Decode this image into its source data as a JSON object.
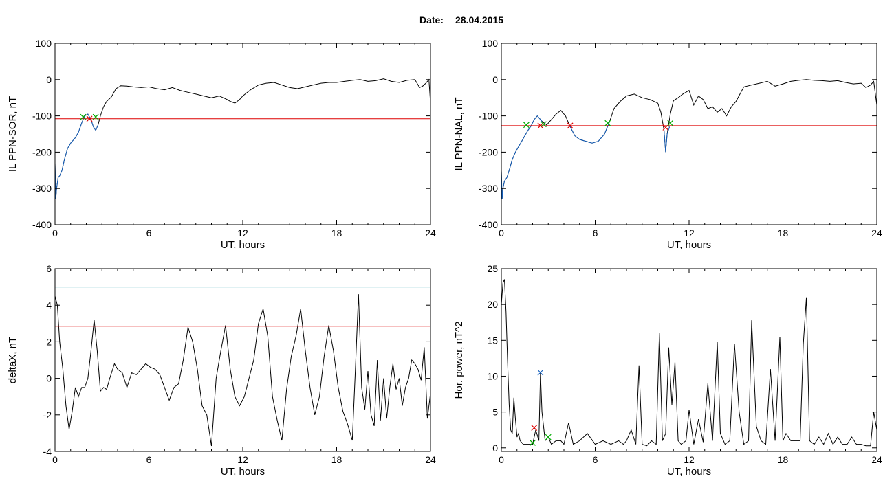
{
  "header": {
    "date_label": "Date:",
    "date_value": "28.04.2015"
  },
  "chart_data": [
    {
      "type": "line",
      "ylabel": "IL PPN-SOR, nT",
      "xlabel": "UT, hours",
      "xlim": [
        0,
        24
      ],
      "ylim": [
        -400,
        100
      ],
      "xticks": [
        0,
        6,
        12,
        18,
        24
      ],
      "yticks": [
        -400,
        -300,
        -200,
        -100,
        0,
        100
      ],
      "grid": false,
      "series": [
        {
          "color": "#000000",
          "x": [
            0,
            0.05,
            0.1,
            0.2,
            0.3,
            0.45,
            0.6,
            0.8,
            1.0,
            1.3,
            1.5,
            1.7,
            1.9,
            2.1,
            2.3,
            2.45,
            2.6,
            2.75,
            2.9,
            3.1,
            3.3,
            3.6,
            3.9,
            4.2,
            4.6,
            5,
            5.5,
            6,
            6.5,
            7,
            7.5,
            8,
            8.5,
            9,
            9.5,
            10,
            10.5,
            11,
            11.2,
            11.5,
            11.8,
            12,
            12.5,
            13,
            13.5,
            14,
            14.5,
            15,
            15.5,
            16,
            16.5,
            17,
            17.5,
            18,
            18.5,
            19,
            19.5,
            20,
            20.5,
            21,
            21.5,
            22,
            22.5,
            23,
            23.3,
            23.5,
            23.7,
            23.9,
            24
          ],
          "y": [
            -230,
            -330,
            -300,
            -270,
            -265,
            -250,
            -220,
            -190,
            -175,
            -160,
            -145,
            -120,
            -100,
            -95,
            -110,
            -130,
            -140,
            -125,
            -100,
            -75,
            -60,
            -48,
            -25,
            -17,
            -18,
            -20,
            -22,
            -20,
            -25,
            -28,
            -22,
            -30,
            -35,
            -40,
            -45,
            -50,
            -45,
            -55,
            -60,
            -65,
            -55,
            -45,
            -28,
            -15,
            -10,
            -8,
            -15,
            -22,
            -25,
            -20,
            -15,
            -10,
            -8,
            -8,
            -5,
            -2,
            0,
            -5,
            -3,
            2,
            -5,
            -8,
            -2,
            0,
            -22,
            -18,
            -10,
            0,
            -65
          ]
        },
        {
          "color": "#1560bd",
          "x": [
            0,
            0.05,
            0.1,
            0.2,
            0.3,
            0.45,
            0.6,
            0.8,
            1.0,
            1.3,
            1.5,
            1.7,
            1.9,
            2.1,
            2.3,
            2.45,
            2.6,
            2.75
          ],
          "y": [
            -230,
            -330,
            -300,
            -270,
            -265,
            -250,
            -220,
            -190,
            -175,
            -160,
            -145,
            -120,
            -100,
            -95,
            -110,
            -130,
            -140,
            -125
          ]
        },
        {
          "color": "#dd0000",
          "x": [
            0,
            24
          ],
          "y": [
            -108,
            -108
          ]
        }
      ],
      "markers": [
        {
          "color": "#dd0000",
          "x": [
            2.2
          ],
          "y": [
            -108
          ]
        },
        {
          "color": "#00aa00",
          "x": [
            1.8,
            2.6
          ],
          "y": [
            -103,
            -103
          ]
        }
      ]
    },
    {
      "type": "line",
      "ylabel": "IL PPN-NAL, nT",
      "xlabel": "UT, hours",
      "xlim": [
        0,
        24
      ],
      "ylim": [
        -400,
        100
      ],
      "xticks": [
        0,
        6,
        12,
        18,
        24
      ],
      "yticks": [
        -400,
        -300,
        -200,
        -100,
        0,
        100
      ],
      "grid": false,
      "series": [
        {
          "color": "#000000",
          "x": [
            0,
            0.05,
            0.1,
            0.2,
            0.35,
            0.5,
            0.7,
            0.9,
            1.1,
            1.3,
            1.5,
            1.7,
            1.9,
            2.1,
            2.3,
            2.6,
            2.9,
            3.2,
            3.5,
            3.8,
            4.1,
            4.4,
            4.7,
            5,
            5.4,
            5.8,
            6.2,
            6.6,
            6.9,
            7.2,
            7.6,
            8,
            8.5,
            9,
            9.5,
            10,
            10.2,
            10.4,
            10.5,
            10.6,
            10.8,
            11,
            11.3,
            11.6,
            12,
            12.3,
            12.6,
            12.9,
            13.2,
            13.5,
            13.8,
            14.1,
            14.4,
            14.7,
            15,
            15.5,
            16,
            16.5,
            17,
            17.5,
            18,
            18.5,
            19,
            19.5,
            20,
            20.5,
            21,
            21.5,
            22,
            22.5,
            23,
            23.3,
            23.6,
            23.8,
            24
          ],
          "y": [
            -250,
            -330,
            -300,
            -280,
            -270,
            -250,
            -220,
            -200,
            -185,
            -170,
            -155,
            -140,
            -128,
            -110,
            -100,
            -115,
            -125,
            -110,
            -95,
            -85,
            -100,
            -130,
            -155,
            -165,
            -170,
            -175,
            -170,
            -150,
            -118,
            -80,
            -60,
            -45,
            -40,
            -50,
            -55,
            -65,
            -90,
            -140,
            -200,
            -150,
            -95,
            -58,
            -50,
            -40,
            -30,
            -70,
            -45,
            -55,
            -80,
            -75,
            -90,
            -80,
            -100,
            -75,
            -60,
            -20,
            -15,
            -10,
            -5,
            -18,
            -12,
            -5,
            -2,
            0,
            -2,
            -3,
            -5,
            -3,
            -8,
            -12,
            -10,
            -22,
            -15,
            -5,
            -70
          ]
        },
        {
          "color": "#1560bd",
          "x": [
            0,
            0.05,
            0.1,
            0.2,
            0.35,
            0.5,
            0.7,
            0.9,
            1.1,
            1.3,
            1.5,
            1.7,
            1.9,
            2.1,
            2.3,
            2.6
          ],
          "y": [
            -250,
            -330,
            -300,
            -280,
            -270,
            -250,
            -220,
            -200,
            -185,
            -170,
            -155,
            -140,
            -128,
            -110,
            -100,
            -115
          ]
        },
        {
          "color": "#1560bd",
          "x": [
            4.4,
            4.7,
            5,
            5.4,
            5.8,
            6.2,
            6.6,
            6.9
          ],
          "y": [
            -130,
            -155,
            -165,
            -170,
            -175,
            -170,
            -150,
            -118
          ]
        },
        {
          "color": "#1560bd",
          "x": [
            10.4,
            10.5,
            10.6,
            10.8
          ],
          "y": [
            -140,
            -200,
            -150,
            -125
          ]
        },
        {
          "color": "#dd0000",
          "x": [
            0,
            24
          ],
          "y": [
            -127,
            -127
          ]
        }
      ],
      "markers": [
        {
          "color": "#dd0000",
          "x": [
            2.5,
            4.4,
            10.5
          ],
          "y": [
            -127,
            -127,
            -132
          ]
        },
        {
          "color": "#00aa00",
          "x": [
            1.6,
            2.7,
            6.8,
            10.8
          ],
          "y": [
            -125,
            -123,
            -120,
            -120
          ]
        }
      ]
    },
    {
      "type": "line",
      "ylabel": "deltaX, nT",
      "xlabel": "UT, hours",
      "xlim": [
        0,
        24
      ],
      "ylim": [
        -4,
        6
      ],
      "xticks": [
        0,
        6,
        12,
        18,
        24
      ],
      "yticks": [
        -4,
        -2,
        0,
        2,
        4,
        6
      ],
      "grid": false,
      "series": [
        {
          "color": "#000000",
          "x": [
            0,
            0.15,
            0.3,
            0.5,
            0.7,
            0.9,
            1.1,
            1.3,
            1.5,
            1.7,
            1.9,
            2.1,
            2.3,
            2.5,
            2.7,
            2.9,
            3.1,
            3.3,
            3.5,
            3.8,
            4,
            4.3,
            4.6,
            4.9,
            5.2,
            5.5,
            5.8,
            6.1,
            6.4,
            6.7,
            7,
            7.3,
            7.6,
            7.9,
            8.2,
            8.5,
            8.8,
            9.1,
            9.4,
            9.7,
            10,
            10.3,
            10.6,
            10.9,
            11.2,
            11.5,
            11.8,
            12.1,
            12.4,
            12.7,
            13,
            13.3,
            13.6,
            13.9,
            14.2,
            14.5,
            14.8,
            15.1,
            15.4,
            15.7,
            16,
            16.3,
            16.6,
            16.9,
            17.2,
            17.5,
            17.8,
            18.1,
            18.4,
            18.7,
            19,
            19.2,
            19.4,
            19.6,
            19.8,
            20,
            20.2,
            20.4,
            20.6,
            20.8,
            21,
            21.2,
            21.4,
            21.6,
            21.8,
            22,
            22.2,
            22.4,
            22.6,
            22.8,
            23,
            23.2,
            23.4,
            23.6,
            23.8,
            24
          ],
          "y": [
            4.5,
            4,
            2,
            0.5,
            -1.5,
            -2.8,
            -1.8,
            -0.5,
            -1,
            -0.5,
            -0.5,
            0,
            1.5,
            3.2,
            1.5,
            -0.7,
            -0.5,
            -0.6,
            0,
            0.8,
            0.5,
            0.3,
            -0.5,
            0.3,
            0.2,
            0.5,
            0.8,
            0.6,
            0.5,
            0.2,
            -0.5,
            -1.2,
            -0.5,
            -0.3,
            1,
            2.8,
            2,
            0.5,
            -1.5,
            -2,
            -3.7,
            0,
            1.5,
            2.9,
            0.5,
            -1,
            -1.5,
            -1,
            0,
            1,
            3,
            3.8,
            2.3,
            -1,
            -2.3,
            -3.4,
            -0.6,
            1.2,
            2.3,
            3.8,
            1.5,
            -0.5,
            -2,
            -1,
            1.2,
            2.9,
            1.5,
            -0.5,
            -1.8,
            -2.5,
            -3.4,
            0.5,
            4.6,
            -0.5,
            -1.7,
            0.4,
            -2,
            -2.6,
            1,
            -2.3,
            0,
            -2.2,
            -0.5,
            0.8,
            -0.6,
            0,
            -1.5,
            -0.5,
            0,
            1,
            0.8,
            0.5,
            -0.1,
            1.7,
            -2.2,
            -0.8
          ]
        },
        {
          "color": "#0c8ea0",
          "x": [
            0,
            24
          ],
          "y": [
            5,
            5
          ]
        },
        {
          "color": "#dd0000",
          "x": [
            0,
            24
          ],
          "y": [
            2.85,
            2.85
          ]
        }
      ],
      "markers": []
    },
    {
      "type": "line",
      "ylabel": "Hor. power, nT^2",
      "xlabel": "UT, hours",
      "xlim": [
        0,
        24
      ],
      "ylim": [
        -0.5,
        25
      ],
      "xticks": [
        0,
        6,
        12,
        18,
        24
      ],
      "yticks": [
        0,
        5,
        10,
        15,
        20,
        25
      ],
      "grid": false,
      "series": [
        {
          "color": "#000000",
          "x": [
            0,
            0.1,
            0.2,
            0.3,
            0.4,
            0.5,
            0.6,
            0.7,
            0.8,
            0.9,
            1,
            1.1,
            1.2,
            1.4,
            1.6,
            1.8,
            2,
            2.2,
            2.4,
            2.5,
            2.6,
            2.8,
            3,
            3.2,
            3.5,
            3.8,
            4,
            4.3,
            4.6,
            5,
            5.5,
            6,
            6.5,
            7,
            7.5,
            7.8,
            8,
            8.3,
            8.6,
            8.8,
            9,
            9.3,
            9.6,
            9.9,
            10.1,
            10.3,
            10.5,
            10.7,
            10.9,
            11.1,
            11.3,
            11.5,
            11.8,
            12,
            12.3,
            12.6,
            12.9,
            13.2,
            13.5,
            13.8,
            14,
            14.3,
            14.6,
            14.9,
            15.2,
            15.5,
            15.8,
            16,
            16.3,
            16.6,
            16.9,
            17.2,
            17.5,
            17.8,
            18,
            18.2,
            18.5,
            18.8,
            19.1,
            19.3,
            19.5,
            19.7,
            20,
            20.3,
            20.6,
            20.9,
            21.2,
            21.5,
            21.8,
            22.1,
            22.4,
            22.7,
            23,
            23.3,
            23.6,
            23.8,
            24
          ],
          "y": [
            20,
            23,
            23.5,
            19,
            12,
            6,
            2.5,
            2,
            7,
            4,
            1.5,
            2,
            1,
            0.5,
            0.5,
            0.5,
            0.5,
            2.5,
            1,
            10.5,
            5,
            1,
            1.5,
            0.5,
            1,
            1,
            0.5,
            3.5,
            0.5,
            1,
            2,
            0.5,
            1,
            0.5,
            1,
            0.5,
            1,
            2.5,
            0.5,
            11.5,
            0.5,
            0.3,
            1,
            0.5,
            16,
            1,
            2,
            14,
            6,
            12,
            1,
            0.5,
            1,
            5.3,
            0.5,
            4,
            0.8,
            9,
            1,
            14.8,
            2,
            0.5,
            1,
            14.5,
            5,
            0.5,
            1,
            17.8,
            3,
            1,
            0.5,
            11,
            1,
            15.5,
            1,
            2,
            1,
            1,
            1,
            14.5,
            21,
            1,
            0.5,
            1.5,
            0.5,
            2,
            0.5,
            1.5,
            0.5,
            0.5,
            1.5,
            0.5,
            0.5,
            0.3,
            0.3,
            5,
            2.5
          ]
        },
        {
          "color": "#dd0000",
          "x": [
            0,
            24
          ],
          "y": [
            25,
            25
          ]
        }
      ],
      "markers": [
        {
          "color": "#1560bd",
          "x": [
            2.5
          ],
          "y": [
            10.5
          ]
        },
        {
          "color": "#dd0000",
          "x": [
            2.1
          ],
          "y": [
            2.8
          ]
        },
        {
          "color": "#00aa00",
          "x": [
            2.0,
            3.0
          ],
          "y": [
            0.7,
            1.5
          ]
        }
      ]
    }
  ]
}
